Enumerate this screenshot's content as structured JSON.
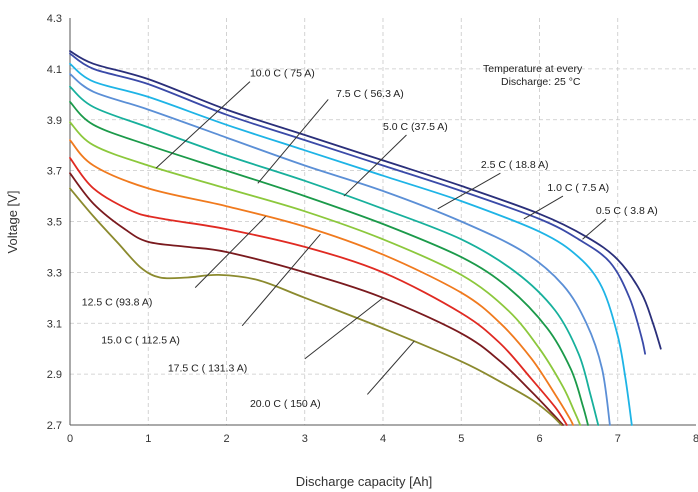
{
  "chart_data": {
    "type": "line",
    "title": "",
    "xlabel": "Discharge capacity [Ah]",
    "ylabel": "Voltage [V]",
    "xlim": [
      0,
      8
    ],
    "ylim": [
      2.7,
      4.3
    ],
    "xticks": [
      "0",
      "1",
      "2",
      "3",
      "4",
      "5",
      "6",
      "7",
      "8"
    ],
    "yticks": [
      "2.7",
      "2.9",
      "3.1",
      "3.3",
      "3.5",
      "3.7",
      "3.9",
      "4.1",
      "4.3"
    ],
    "grid": true,
    "legend": "none",
    "note_lines": [
      "Temperature at every",
      "Discharge:     25 °C"
    ],
    "series": [
      {
        "label": "0.5 C ( 3.8 A)",
        "color": "#2a2f7a",
        "points": [
          [
            0,
            4.17
          ],
          [
            0.3,
            4.12
          ],
          [
            1,
            4.06
          ],
          [
            2,
            3.94
          ],
          [
            3,
            3.84
          ],
          [
            4,
            3.74
          ],
          [
            5,
            3.64
          ],
          [
            6,
            3.53
          ],
          [
            6.6,
            3.44
          ],
          [
            7.0,
            3.35
          ],
          [
            7.3,
            3.22
          ],
          [
            7.45,
            3.1
          ],
          [
            7.55,
            3.0
          ]
        ]
      },
      {
        "label": "1.0 C ( 7.5 A)",
        "color": "#3a4aa8",
        "points": [
          [
            0,
            4.16
          ],
          [
            0.3,
            4.1
          ],
          [
            1,
            4.04
          ],
          [
            2,
            3.92
          ],
          [
            3,
            3.82
          ],
          [
            4,
            3.72
          ],
          [
            5,
            3.62
          ],
          [
            6,
            3.51
          ],
          [
            6.5,
            3.43
          ],
          [
            6.9,
            3.34
          ],
          [
            7.15,
            3.2
          ],
          [
            7.3,
            3.05
          ],
          [
            7.35,
            2.98
          ]
        ]
      },
      {
        "label": "2.5 C ( 18.8 A)",
        "color": "#1eb4e6",
        "points": [
          [
            0,
            4.12
          ],
          [
            0.3,
            4.05
          ],
          [
            1,
            3.99
          ],
          [
            2,
            3.88
          ],
          [
            3,
            3.78
          ],
          [
            4,
            3.68
          ],
          [
            5,
            3.58
          ],
          [
            6,
            3.46
          ],
          [
            6.5,
            3.36
          ],
          [
            6.8,
            3.24
          ],
          [
            7.0,
            3.05
          ],
          [
            7.1,
            2.88
          ],
          [
            7.18,
            2.7
          ]
        ]
      },
      {
        "label": "5.0 C (37.5 A)",
        "color": "#5b8fd6",
        "points": [
          [
            0,
            4.08
          ],
          [
            0.3,
            4.01
          ],
          [
            1,
            3.94
          ],
          [
            2,
            3.83
          ],
          [
            3,
            3.72
          ],
          [
            4,
            3.62
          ],
          [
            5,
            3.5
          ],
          [
            5.8,
            3.38
          ],
          [
            6.3,
            3.25
          ],
          [
            6.6,
            3.1
          ],
          [
            6.8,
            2.92
          ],
          [
            6.9,
            2.7
          ]
        ]
      },
      {
        "label": "7.5 C ( 56.3 A)",
        "color": "#17b09c",
        "points": [
          [
            0,
            4.03
          ],
          [
            0.3,
            3.95
          ],
          [
            1,
            3.87
          ],
          [
            2,
            3.76
          ],
          [
            3,
            3.66
          ],
          [
            4,
            3.55
          ],
          [
            5,
            3.43
          ],
          [
            5.7,
            3.3
          ],
          [
            6.2,
            3.15
          ],
          [
            6.5,
            2.98
          ],
          [
            6.65,
            2.82
          ],
          [
            6.75,
            2.7
          ]
        ]
      },
      {
        "label": "10.0 C ( 75 A)",
        "color": "#1b9a4a",
        "points": [
          [
            0,
            3.97
          ],
          [
            0.3,
            3.88
          ],
          [
            1,
            3.8
          ],
          [
            2,
            3.7
          ],
          [
            3,
            3.6
          ],
          [
            4,
            3.49
          ],
          [
            5,
            3.36
          ],
          [
            5.6,
            3.24
          ],
          [
            6.1,
            3.08
          ],
          [
            6.4,
            2.92
          ],
          [
            6.55,
            2.78
          ],
          [
            6.62,
            2.7
          ]
        ]
      },
      {
        "label": "12.5 C (93.8 A)",
        "color": "#8cc83c",
        "points": [
          [
            0,
            3.89
          ],
          [
            0.3,
            3.8
          ],
          [
            1,
            3.72
          ],
          [
            2,
            3.63
          ],
          [
            3,
            3.54
          ],
          [
            4,
            3.43
          ],
          [
            5,
            3.29
          ],
          [
            5.6,
            3.15
          ],
          [
            6.0,
            3.0
          ],
          [
            6.3,
            2.85
          ],
          [
            6.45,
            2.75
          ],
          [
            6.52,
            2.7
          ]
        ]
      },
      {
        "label": "15.0 C ( 112.5 A)",
        "color": "#f07a1e",
        "points": [
          [
            0,
            3.82
          ],
          [
            0.3,
            3.72
          ],
          [
            1,
            3.63
          ],
          [
            2,
            3.56
          ],
          [
            3,
            3.48
          ],
          [
            4,
            3.37
          ],
          [
            5,
            3.22
          ],
          [
            5.5,
            3.1
          ],
          [
            5.9,
            2.96
          ],
          [
            6.2,
            2.82
          ],
          [
            6.38,
            2.73
          ],
          [
            6.43,
            2.7
          ]
        ]
      },
      {
        "label": "17.5 C ( 131.3 A)",
        "color": "#e02a22",
        "points": [
          [
            0,
            3.75
          ],
          [
            0.3,
            3.63
          ],
          [
            0.8,
            3.54
          ],
          [
            1.2,
            3.51
          ],
          [
            2,
            3.47
          ],
          [
            3,
            3.4
          ],
          [
            4,
            3.3
          ],
          [
            5,
            3.14
          ],
          [
            5.5,
            3.02
          ],
          [
            5.9,
            2.88
          ],
          [
            6.2,
            2.77
          ],
          [
            6.35,
            2.7
          ]
        ]
      },
      {
        "label": "20.0 C ( 150 A)",
        "color": "#7a1a1e",
        "points": [
          [
            0,
            3.69
          ],
          [
            0.3,
            3.57
          ],
          [
            0.7,
            3.47
          ],
          [
            1.0,
            3.42
          ],
          [
            1.5,
            3.4
          ],
          [
            2,
            3.38
          ],
          [
            3,
            3.3
          ],
          [
            4,
            3.2
          ],
          [
            5,
            3.06
          ],
          [
            5.5,
            2.95
          ],
          [
            5.9,
            2.83
          ],
          [
            6.15,
            2.75
          ],
          [
            6.3,
            2.7
          ]
        ]
      },
      {
        "label": "",
        "color": "#8b8a2e",
        "points": [
          [
            0,
            3.63
          ],
          [
            0.3,
            3.52
          ],
          [
            0.6,
            3.42
          ],
          [
            0.9,
            3.32
          ],
          [
            1.15,
            3.28
          ],
          [
            1.5,
            3.28
          ],
          [
            1.9,
            3.29
          ],
          [
            2.4,
            3.27
          ],
          [
            3,
            3.2
          ],
          [
            4,
            3.08
          ],
          [
            5,
            2.95
          ],
          [
            5.5,
            2.87
          ],
          [
            5.9,
            2.8
          ],
          [
            6.15,
            2.74
          ],
          [
            6.28,
            2.7
          ]
        ]
      }
    ],
    "annotations": [
      {
        "text": "10.0  C ( 75  A)",
        "at": [
          1.1,
          3.71
        ],
        "to": [
          2.3,
          4.05
        ],
        "label_pos": [
          2.3,
          4.07
        ],
        "anchor": "start"
      },
      {
        "text": "7.5  C ( 56.3   A)",
        "at": [
          2.4,
          3.65
        ],
        "to": [
          3.3,
          3.98
        ],
        "label_pos": [
          3.4,
          3.99
        ],
        "anchor": "start"
      },
      {
        "text": "5.0 C (37.5 A)",
        "at": [
          3.5,
          3.6
        ],
        "to": [
          4.3,
          3.84
        ],
        "label_pos": [
          4.0,
          3.86
        ],
        "anchor": "start"
      },
      {
        "text": "2.5   C ( 18.8   A)",
        "at": [
          4.7,
          3.55
        ],
        "to": [
          5.5,
          3.69
        ],
        "label_pos": [
          5.25,
          3.71
        ],
        "anchor": "start"
      },
      {
        "text": "1.0   C ( 7.5   A)",
        "at": [
          5.8,
          3.51
        ],
        "to": [
          6.3,
          3.6
        ],
        "label_pos": [
          6.1,
          3.62
        ],
        "anchor": "start"
      },
      {
        "text": "0.5   C ( 3.8   A)",
        "at": [
          6.55,
          3.43
        ],
        "to": [
          6.85,
          3.51
        ],
        "label_pos": [
          6.72,
          3.53
        ],
        "anchor": "start"
      },
      {
        "text": "12.5 C (93.8 A)",
        "at": [
          2.5,
          3.52
        ],
        "to": [
          1.6,
          3.24
        ],
        "label_pos": [
          0.15,
          3.17
        ],
        "anchor": "start"
      },
      {
        "text": "15.0   C ( 112.5    A)",
        "at": [
          3.2,
          3.45
        ],
        "to": [
          2.2,
          3.09
        ],
        "label_pos": [
          0.4,
          3.02
        ],
        "anchor": "start"
      },
      {
        "text": "17.5    C ( 131.3    A)",
        "at": [
          4.0,
          3.2
        ],
        "to": [
          3.0,
          2.96
        ],
        "label_pos": [
          1.25,
          2.91
        ],
        "anchor": "start"
      },
      {
        "text": "20.0   C ( 150    A)",
        "at": [
          4.4,
          3.03
        ],
        "to": [
          3.8,
          2.82
        ],
        "label_pos": [
          2.3,
          2.77
        ],
        "anchor": "start"
      }
    ]
  }
}
